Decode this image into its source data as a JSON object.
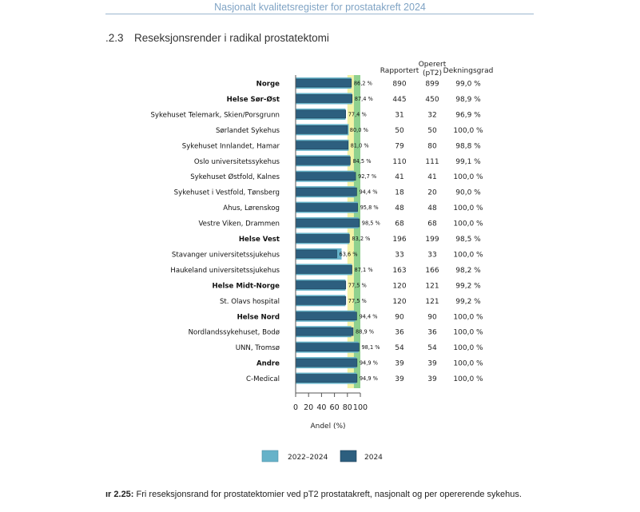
{
  "header": {
    "text": "Nasjonalt kvalitetsregister for prostatakreft 2024"
  },
  "section": {
    "number": ".2.3",
    "title": "Reseksjonsrender i radikal prostatektomi"
  },
  "caption": {
    "label": "ır 2.25:",
    "text": " Fri reseksjonsrand for prostatektomier ved pT2 prostatakreft, nasjonalt og per opererende sykehus."
  },
  "colors": {
    "series_2022_2024": "#66b2c9",
    "series_2024": "#2d5f7f",
    "target_green": "#8fd18f",
    "target_yellow": "#f3f3a6"
  },
  "chart_data": {
    "type": "bar",
    "orientation": "horizontal",
    "xlabel": "Andel (%)",
    "xlim": [
      0,
      100
    ],
    "xticks": [
      "0",
      "20",
      "40",
      "60",
      "80",
      "100"
    ],
    "target_band": {
      "yellow_from": 80,
      "green_from": 90,
      "to": 100
    },
    "columns": [
      "Rapportert",
      "Operert (pT2)",
      "Dekningsgrad"
    ],
    "legend": [
      "2022–2024",
      "2024"
    ],
    "categories": [
      "Norge",
      "Helse Sør-Øst",
      "Sykehuset Telemark, Skien/Porsgrunn",
      "Sørlandet Sykehus",
      "Sykehuset Innlandet, Hamar",
      "Oslo universitetssykehus",
      "Sykehuset Østfold, Kalnes",
      "Sykehuset i Vestfold, Tønsberg",
      "Ahus, Lørenskog",
      "Vestre Viken, Drammen",
      "Helse Vest",
      "Stavanger universitetssjukehus",
      "Haukeland universitetssjukehus",
      "Helse Midt-Norge",
      "St. Olavs hospital",
      "Helse Nord",
      "Nordlandssykehuset, Bodø",
      "UNN, Tromsø",
      "Andre",
      "C-Medical"
    ],
    "bold": [
      true,
      true,
      false,
      false,
      false,
      false,
      false,
      false,
      false,
      false,
      true,
      false,
      false,
      true,
      false,
      true,
      false,
      false,
      true,
      false
    ],
    "series": [
      {
        "name": "2022–2024",
        "values": [
          86,
          87,
          77,
          82,
          82,
          84,
          90,
          92,
          96,
          97,
          83,
          71,
          87,
          77,
          77,
          92,
          86,
          97,
          94,
          94
        ]
      },
      {
        "name": "2024",
        "values": [
          86.2,
          87.4,
          77.4,
          80.0,
          81.0,
          84.5,
          92.7,
          94.4,
          95.8,
          98.5,
          83.2,
          63.6,
          87.1,
          77.5,
          77.5,
          94.4,
          88.9,
          98.1,
          94.9,
          94.9
        ]
      }
    ],
    "value_labels": [
      "86,2 %",
      "87,4 %",
      "77,4 %",
      "80,0 %",
      "81,0 %",
      "84,5 %",
      "92,7 %",
      "94,4 %",
      "95,8 %",
      "98,5 %",
      "83,2 %",
      "63,6 %",
      "87,1 %",
      "77,5 %",
      "77,5 %",
      "94,4 %",
      "88,9 %",
      "98,1 %",
      "94,9 %",
      "94,9 %"
    ],
    "rapportert": [
      "890",
      "445",
      "31",
      "50",
      "79",
      "110",
      "41",
      "18",
      "48",
      "68",
      "196",
      "33",
      "163",
      "120",
      "120",
      "90",
      "36",
      "54",
      "39",
      "39"
    ],
    "operert": [
      "899",
      "450",
      "32",
      "50",
      "80",
      "111",
      "41",
      "20",
      "48",
      "68",
      "199",
      "33",
      "166",
      "121",
      "121",
      "90",
      "36",
      "54",
      "39",
      "39"
    ],
    "dekningsgrad": [
      "99,0 %",
      "98,9 %",
      "96,9 %",
      "100,0 %",
      "98,8 %",
      "99,1 %",
      "100,0 %",
      "90,0 %",
      "100,0 %",
      "100,0 %",
      "98,5 %",
      "100,0 %",
      "98,2 %",
      "99,2 %",
      "99,2 %",
      "100,0 %",
      "100,0 %",
      "100,0 %",
      "100,0 %",
      "100,0 %"
    ]
  }
}
